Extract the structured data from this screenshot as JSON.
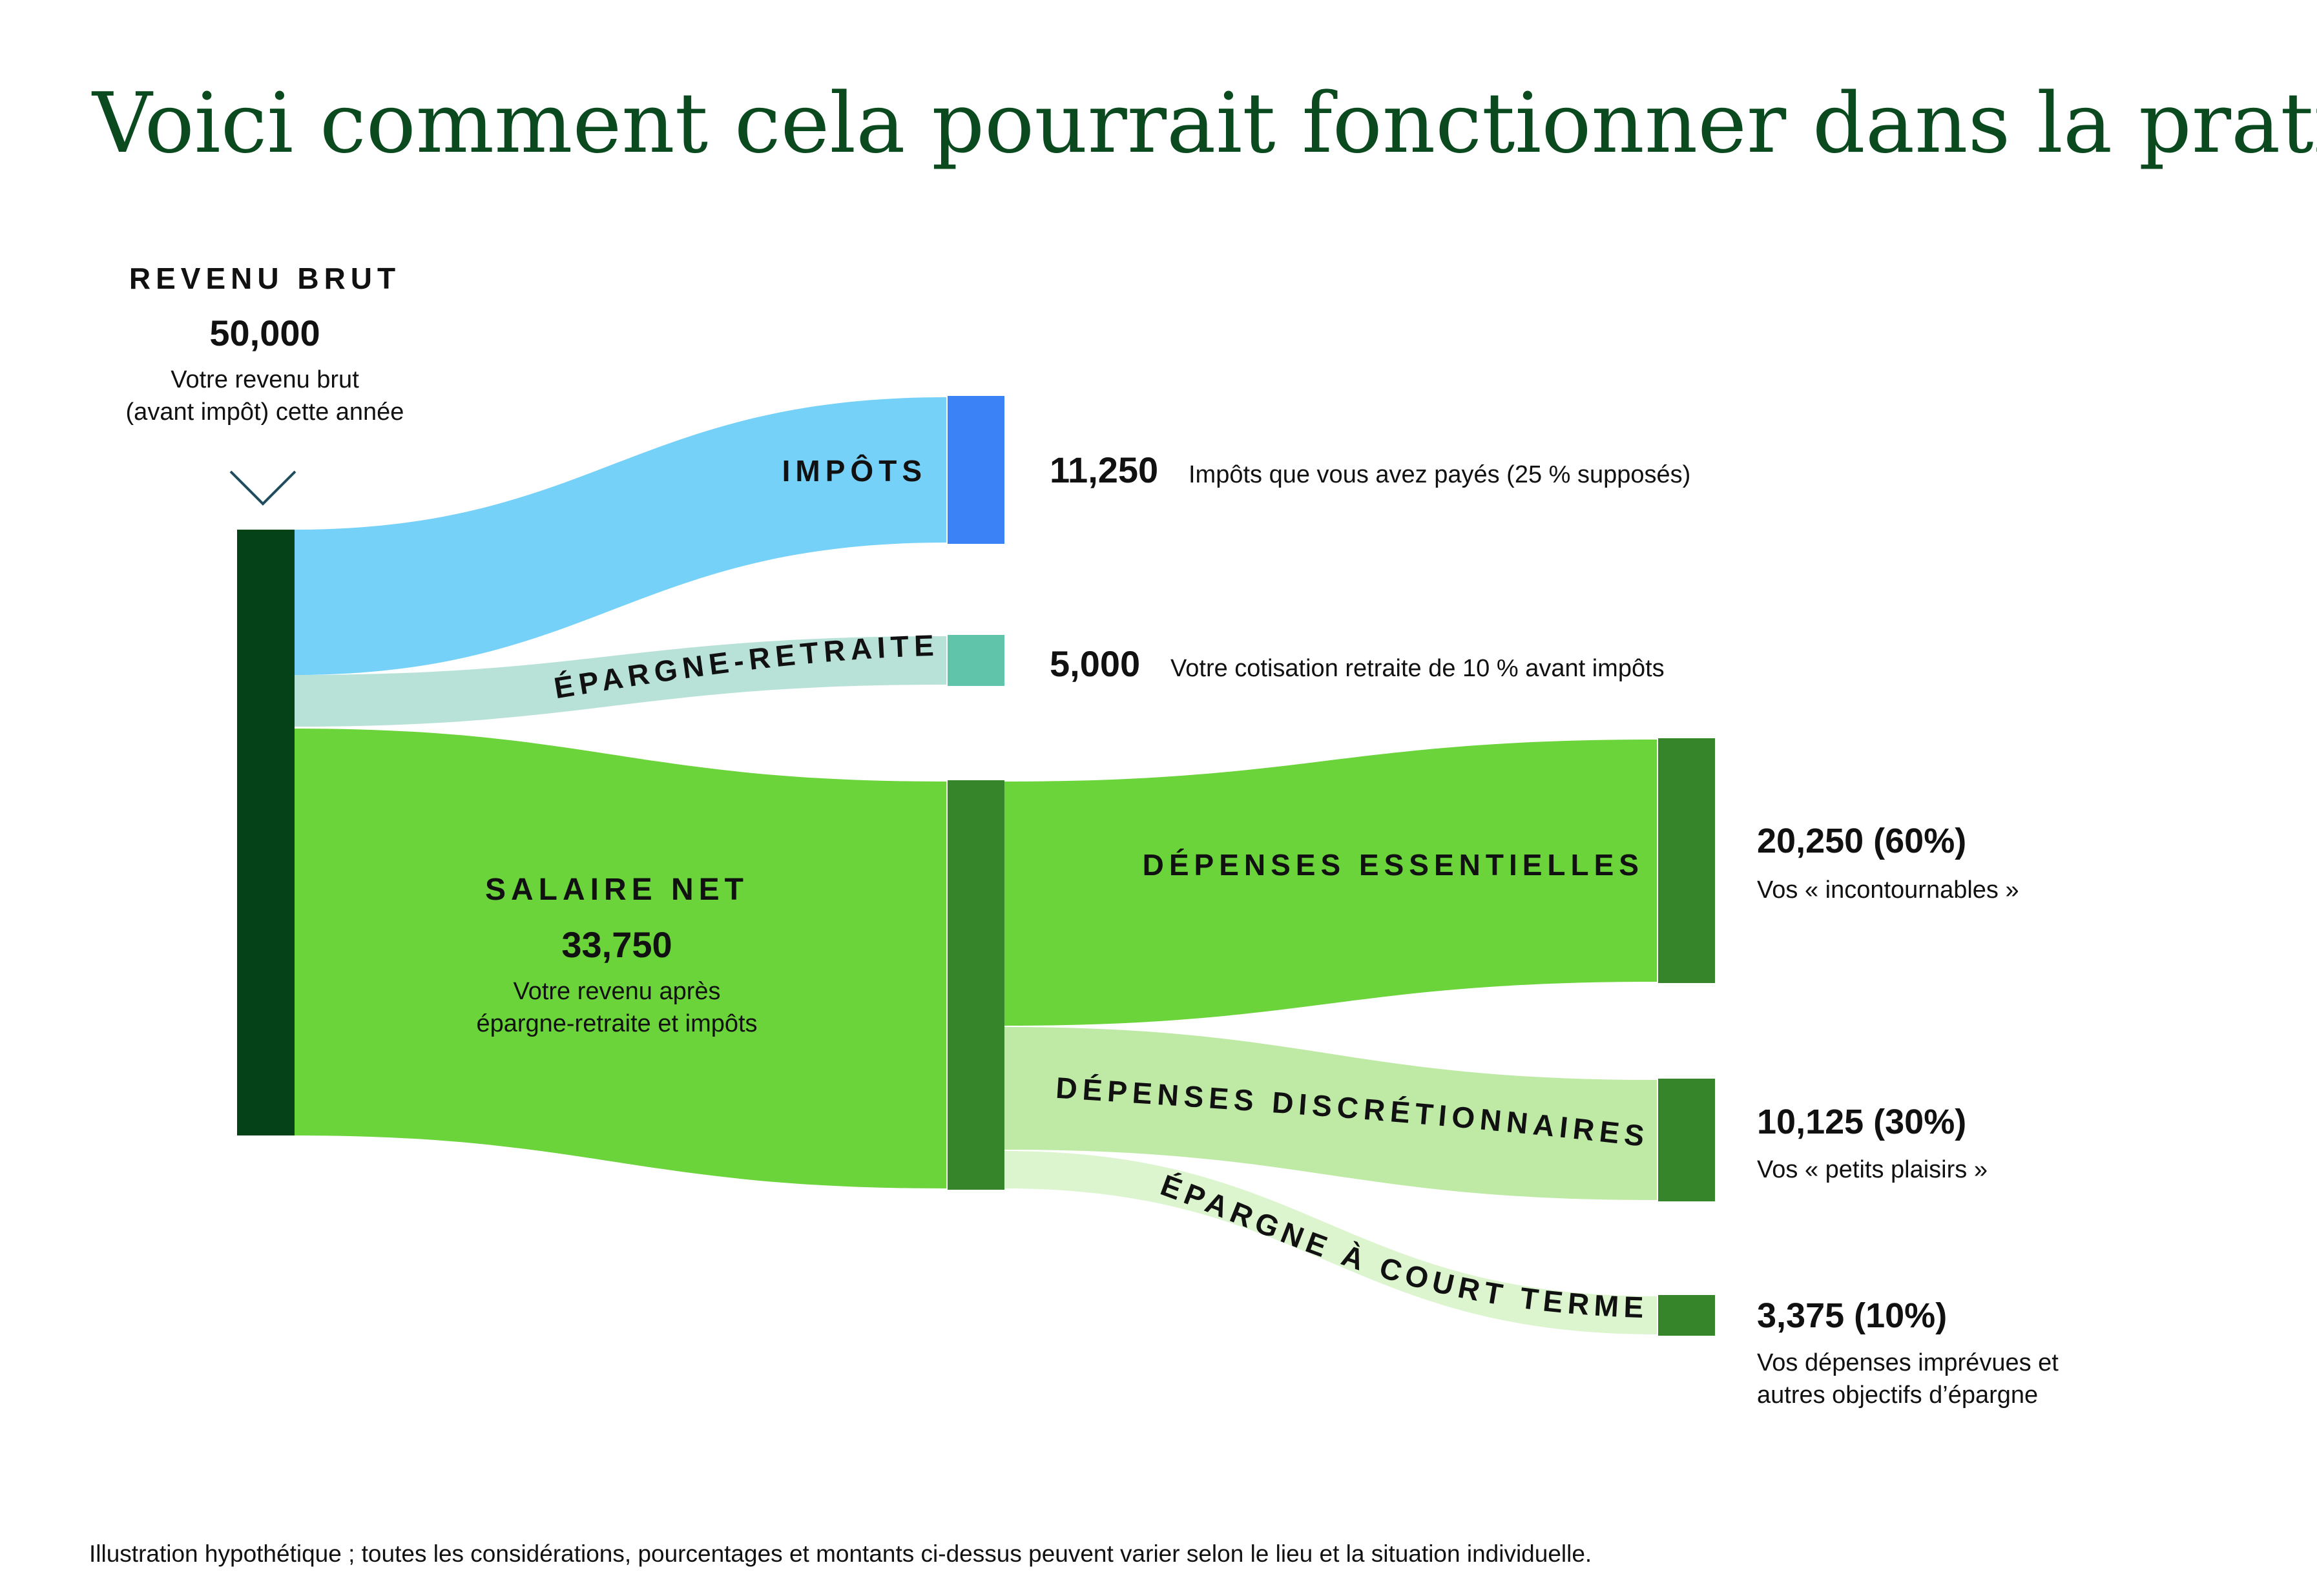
{
  "title": "Voici comment cela pourrait fonctionner dans la pratique",
  "source": {
    "label": "REVENU BRUT",
    "value": "50,000",
    "desc_line1": "Votre revenu brut",
    "desc_line2": "(avant impôt) cette année"
  },
  "chart_data": {
    "type": "sankey",
    "nodes": [
      "Revenu brut",
      "Impôts",
      "Épargne-retraite",
      "Salaire net",
      "Dépenses essentielles",
      "Dépenses discrétionnaires",
      "Épargne à court terme"
    ],
    "links": [
      {
        "from": "Revenu brut",
        "to": "Impôts",
        "value": 11250
      },
      {
        "from": "Revenu brut",
        "to": "Épargne-retraite",
        "value": 5000
      },
      {
        "from": "Revenu brut",
        "to": "Salaire net",
        "value": 33750
      },
      {
        "from": "Salaire net",
        "to": "Dépenses essentielles",
        "value": 20250
      },
      {
        "from": "Salaire net",
        "to": "Dépenses discrétionnaires",
        "value": 10125
      },
      {
        "from": "Salaire net",
        "to": "Épargne à court terme",
        "value": 3375
      }
    ]
  },
  "flows": {
    "impots": {
      "label": "IMPÔTS",
      "value": "11,250",
      "desc": "Impôts que vous avez payés (25 % supposés)"
    },
    "retraite": {
      "label": "ÉPARGNE-RETRAITE",
      "value": "5,000",
      "desc": "Votre cotisation retraite de 10 % avant impôts"
    },
    "salaire": {
      "label": "SALAIRE NET",
      "value": "33,750",
      "desc_line1": "Votre revenu après",
      "desc_line2": "épargne-retraite et impôts"
    },
    "essentielles": {
      "label": "DÉPENSES ESSENTIELLES",
      "value": "20,250 (60%)",
      "desc": "Vos « incontournables »"
    },
    "discretionnaires": {
      "label": "DÉPENSES DISCRÉTIONNAIRES",
      "value": "10,125 (30%)",
      "desc": "Vos « petits plaisirs »"
    },
    "court_terme": {
      "label": "ÉPARGNE À COURT TERME",
      "value": "3,375 (10%)",
      "desc_line1": "Vos dépenses imprévues et",
      "desc_line2": "autres objectifs d’épargne"
    }
  },
  "colors": {
    "title": "#0b4a1f",
    "source_bar": "#064218",
    "impots_flow": "#76d1f8",
    "impots_bar": "#3b82f6",
    "retraite_flow": "#b8e2d8",
    "retraite_bar": "#5fc4aa",
    "salaire_flow": "#6ad43a",
    "salaire_bar": "#37852a",
    "essentielles_flow": "#6ad43a",
    "discretionnaires_flow": "#bfeaa6",
    "court_terme_flow": "#dcf5cf",
    "target_bar": "#37852a",
    "chevron": "#1f4d5e"
  },
  "footnote": "Illustration hypothétique ; toutes les considérations, pourcentages et montants ci-dessus peuvent varier selon le lieu et la situation individuelle."
}
